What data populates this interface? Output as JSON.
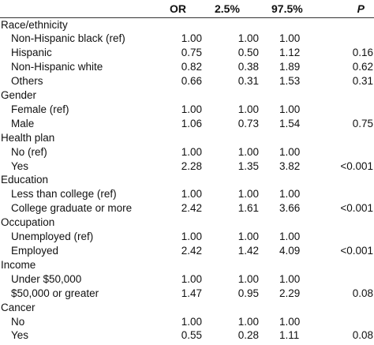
{
  "header": {
    "col0": "",
    "or": "OR",
    "lo": "2.5%",
    "hi": "97.5%",
    "p": "P"
  },
  "rows": [
    {
      "type": "group",
      "label": "Race/ethnicity"
    },
    {
      "type": "item",
      "label": "Non-Hispanic black (ref)",
      "or": "1.00",
      "lo": "1.00",
      "hi": "1.00",
      "p": ""
    },
    {
      "type": "item",
      "label": "Hispanic",
      "or": "0.75",
      "lo": "0.50",
      "hi": "1.12",
      "p": "0.16"
    },
    {
      "type": "item",
      "label": "Non-Hispanic white",
      "or": "0.82",
      "lo": "0.38",
      "hi": "1.89",
      "p": "0.62"
    },
    {
      "type": "item",
      "label": "Others",
      "or": "0.66",
      "lo": "0.31",
      "hi": "1.53",
      "p": "0.31"
    },
    {
      "type": "group",
      "label": "Gender"
    },
    {
      "type": "item",
      "label": "Female (ref)",
      "or": "1.00",
      "lo": "1.00",
      "hi": "1.00",
      "p": ""
    },
    {
      "type": "item",
      "label": "Male",
      "or": "1.06",
      "lo": "0.73",
      "hi": "1.54",
      "p": "0.75"
    },
    {
      "type": "group",
      "label": "Health plan"
    },
    {
      "type": "item",
      "label": "No (ref)",
      "or": "1.00",
      "lo": "1.00",
      "hi": "1.00",
      "p": ""
    },
    {
      "type": "item",
      "label": "Yes",
      "or": "2.28",
      "lo": "1.35",
      "hi": "3.82",
      "p": "<0.001"
    },
    {
      "type": "group",
      "label": "Education"
    },
    {
      "type": "item",
      "label": "Less than college (ref)",
      "or": "1.00",
      "lo": "1.00",
      "hi": "1.00",
      "p": ""
    },
    {
      "type": "item",
      "label": "College graduate or more",
      "or": "2.42",
      "lo": "1.61",
      "hi": "3.66",
      "p": "<0.001"
    },
    {
      "type": "group",
      "label": "Occupation"
    },
    {
      "type": "item",
      "label": "Unemployed (ref)",
      "or": "1.00",
      "lo": "1.00",
      "hi": "1.00",
      "p": ""
    },
    {
      "type": "item",
      "label": "Employed",
      "or": "2.42",
      "lo": "1.42",
      "hi": "4.09",
      "p": "<0.001"
    },
    {
      "type": "group",
      "label": "Income"
    },
    {
      "type": "item",
      "label": "Under $50,000",
      "or": "1.00",
      "lo": "1.00",
      "hi": "1.00",
      "p": ""
    },
    {
      "type": "item",
      "label": "$50,000 or greater",
      "or": "1.47",
      "lo": "0.95",
      "hi": "2.29",
      "p": "0.08"
    },
    {
      "type": "group",
      "label": "Cancer"
    },
    {
      "type": "item",
      "label": "No",
      "or": "1.00",
      "lo": "1.00",
      "hi": "1.00",
      "p": ""
    },
    {
      "type": "item",
      "label": "Yes",
      "or": "0.55",
      "lo": "0.28",
      "hi": "1.11",
      "p": "0.08"
    }
  ]
}
